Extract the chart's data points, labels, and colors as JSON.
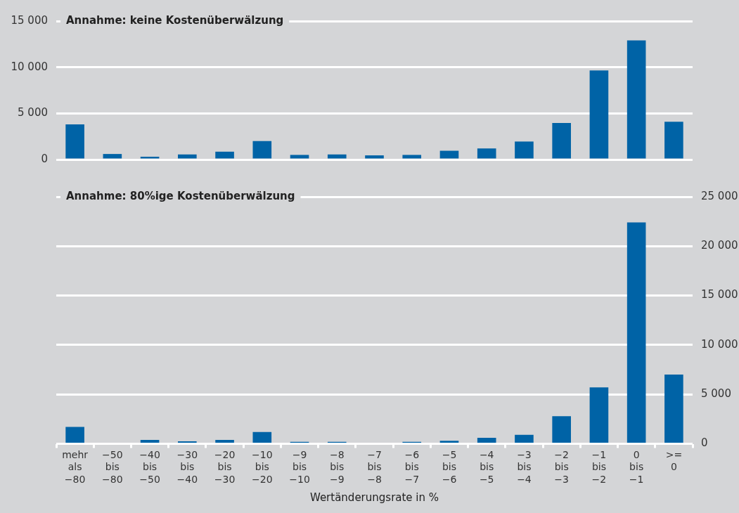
{
  "chart_data": [
    {
      "type": "bar",
      "title": "Annahme: keine Kostenüberwälzung",
      "categories": [
        null,
        null,
        null,
        null,
        null,
        null,
        null,
        null,
        null,
        null,
        null,
        null,
        null,
        null,
        null,
        null,
        null
      ],
      "values": [
        3800,
        600,
        300,
        550,
        850,
        2000,
        500,
        550,
        450,
        500,
        950,
        1200,
        1950,
        3950,
        9650,
        12900,
        4100
      ],
      "color": "#0063a6",
      "ylim": [
        0,
        15000
      ],
      "yticks": [
        {
          "value": 0,
          "label": "0"
        },
        {
          "value": 5000,
          "label": "5 000"
        },
        {
          "value": 10000,
          "label": "10 000"
        },
        {
          "value": 15000,
          "label": "15 000"
        }
      ],
      "grid": "y",
      "tick_labels": "y"
    },
    {
      "type": "bar",
      "title": "Annahme: 80%ige Kostenüberwälzung",
      "xlabel": "Wertänderungsrate in %",
      "categories": [
        "mehr als −80",
        "−50 bis −80",
        "−40 bis −50",
        "−30 bis −40",
        "−20 bis −30",
        "−10 bis −20",
        "−9 bis −10",
        "−8 bis −9",
        "−7 bis −8",
        "−6 bis −7",
        "−5 bis −6",
        "−4 bis −5",
        "−3 bis −4",
        "−2 bis −3",
        "−1 bis −2",
        "0 bis −1",
        ">= 0"
      ],
      "series": [
        {
          "color": "#0063a6",
          "axis": "y2",
          "values": [
            1700,
            0,
            400,
            250,
            400,
            1200,
            200,
            200,
            0,
            200,
            300,
            600,
            900,
            2800,
            5700,
            22400,
            7000
          ]
        }
      ],
      "y2lim": [
        0,
        25000
      ],
      "y2ticks": [
        {
          "value": 0,
          "label": "0"
        },
        {
          "value": 5000,
          "label": "5 000"
        },
        {
          "value": 10000,
          "label": "10 000"
        },
        {
          "value": 15000,
          "label": "15 000"
        },
        {
          "value": 20000,
          "label": "20 000"
        },
        {
          "value": 25000,
          "label": "25 000"
        }
      ],
      "grid": "y"
    }
  ]
}
